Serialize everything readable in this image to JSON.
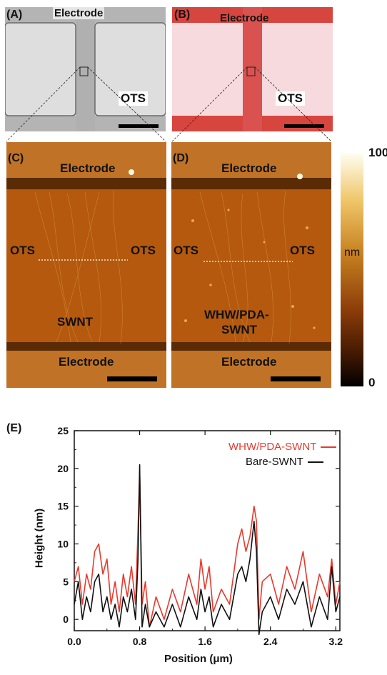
{
  "panels": {
    "A": {
      "letter": "(A)",
      "top_label": "Electrode",
      "side_label": "OTS"
    },
    "B": {
      "letter": "(B)",
      "top_label": "Electrode",
      "side_label": "OTS"
    },
    "C": {
      "letter": "(C)",
      "top_label": "Electrode",
      "left_label": "OTS",
      "right_label": "OTS",
      "center_label": "SWNT",
      "bottom_label": "Electrode"
    },
    "D": {
      "letter": "(D)",
      "top_label": "Electrode",
      "left_label": "OTS",
      "right_label": "OTS",
      "center_label_line1": "WHW/PDA-",
      "center_label_line2": "SWNT",
      "bottom_label": "Electrode"
    },
    "E": {
      "letter": "(E)"
    }
  },
  "colorbar": {
    "max_label": "100",
    "unit_label": "nm",
    "min_label": "0"
  },
  "colors": {
    "red_series": "#e8392c",
    "black_series": "#111111",
    "afm_mid": "#b2590f"
  },
  "chart_data": {
    "type": "line",
    "xlabel": "Position (μm)",
    "ylabel": "Height (nm)",
    "xlim": [
      0.0,
      3.25
    ],
    "ylim": [
      -1.5,
      25
    ],
    "xticks": [
      "0.0",
      "0.8",
      "1.6",
      "2.4",
      "3.2"
    ],
    "yticks": [
      "0",
      "5",
      "10",
      "15",
      "20",
      "25"
    ],
    "legend_position": "top-right",
    "series": [
      {
        "name": "WHW/PDA-SWNT",
        "color": "#e8392c",
        "x": [
          0.0,
          0.05,
          0.1,
          0.15,
          0.2,
          0.25,
          0.3,
          0.35,
          0.4,
          0.45,
          0.5,
          0.55,
          0.6,
          0.65,
          0.7,
          0.75,
          0.78,
          0.8,
          0.83,
          0.87,
          0.92,
          1.0,
          1.1,
          1.2,
          1.3,
          1.4,
          1.5,
          1.55,
          1.6,
          1.65,
          1.7,
          1.8,
          1.9,
          2.0,
          2.05,
          2.1,
          2.15,
          2.2,
          2.23,
          2.26,
          2.3,
          2.4,
          2.5,
          2.6,
          2.7,
          2.8,
          2.9,
          3.0,
          3.1,
          3.15,
          3.2,
          3.25
        ],
        "values": [
          5,
          7,
          2,
          6,
          4,
          9,
          10,
          6,
          8,
          2,
          5,
          1,
          6,
          3,
          7,
          2,
          12,
          19.5,
          2,
          5,
          -1,
          3,
          0,
          4,
          1,
          6,
          2,
          8,
          4,
          7,
          1,
          4,
          2,
          10,
          12,
          9,
          11,
          15,
          13,
          0,
          5,
          6,
          2,
          7,
          4,
          9,
          1,
          6,
          3,
          8,
          2,
          5
        ]
      },
      {
        "name": "Bare-SWNT",
        "color": "#111111",
        "x": [
          0.0,
          0.05,
          0.1,
          0.15,
          0.2,
          0.25,
          0.3,
          0.35,
          0.4,
          0.45,
          0.5,
          0.55,
          0.6,
          0.65,
          0.7,
          0.75,
          0.78,
          0.8,
          0.83,
          0.87,
          0.92,
          1.0,
          1.1,
          1.2,
          1.3,
          1.4,
          1.5,
          1.55,
          1.6,
          1.65,
          1.7,
          1.8,
          1.9,
          2.0,
          2.05,
          2.1,
          2.15,
          2.2,
          2.23,
          2.26,
          2.3,
          2.4,
          2.5,
          2.6,
          2.7,
          2.8,
          2.9,
          3.0,
          3.1,
          3.15,
          3.2,
          3.25
        ],
        "values": [
          2,
          5,
          0,
          3,
          1,
          5,
          6,
          1,
          3,
          0,
          2,
          -1,
          3,
          1,
          4,
          0,
          8,
          20.5,
          -1,
          2,
          -1,
          1,
          -1,
          2,
          -1,
          3,
          0,
          4,
          1,
          3,
          -1,
          2,
          0,
          6,
          7,
          5,
          8,
          13,
          9,
          -2,
          1,
          3,
          0,
          4,
          2,
          5,
          -1,
          3,
          0,
          7,
          1,
          3
        ]
      }
    ]
  }
}
